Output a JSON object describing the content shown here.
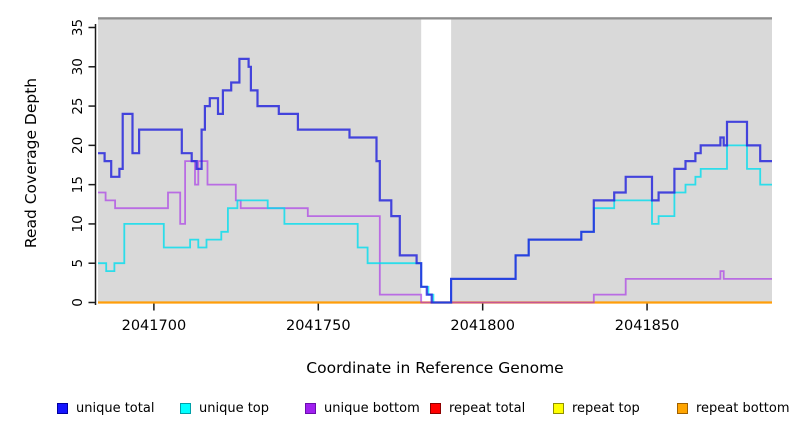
{
  "figure": {
    "background": "#FFFFFF"
  },
  "chart_data": {
    "type": "line",
    "subtype": "step-after",
    "title": "",
    "xlabel": "Coordinate in Reference Genome",
    "ylabel": "Read Coverage Depth",
    "xlim": [
      2041683,
      2041888
    ],
    "ylim": [
      0,
      36
    ],
    "xticks": [
      2041700,
      2041750,
      2041800,
      2041850
    ],
    "yticks": [
      0,
      5,
      10,
      15,
      20,
      25,
      30,
      35
    ],
    "grid": false,
    "legend_position": "bottom",
    "plot_background": "#D9D9D9",
    "gap_band": {
      "x_start": 2041781.3,
      "x_end": 2041790.4,
      "color": "#FFFFFF"
    },
    "top_border_color": "#8E8E8E",
    "axis_color": "#1A1A1A",
    "series": [
      {
        "name": "unique total",
        "legend_fill": "#1515FF",
        "legend_border": "#0000A0",
        "line_color": "#2222DD",
        "line_opacity": 0.82,
        "line_width": 2.2,
        "draw_order": 6,
        "points": [
          [
            2041683,
            19
          ],
          [
            2041685,
            18
          ],
          [
            2041687,
            16
          ],
          [
            2041689.5,
            17
          ],
          [
            2041690.5,
            24
          ],
          [
            2041693.5,
            19
          ],
          [
            2041695.5,
            22
          ],
          [
            2041708.5,
            19
          ],
          [
            2041711.5,
            18
          ],
          [
            2041713,
            17
          ],
          [
            2041714.5,
            22
          ],
          [
            2041715.5,
            25
          ],
          [
            2041717,
            26
          ],
          [
            2041719.5,
            24
          ],
          [
            2041721,
            27
          ],
          [
            2041723.5,
            28
          ],
          [
            2041726,
            31
          ],
          [
            2041728.8,
            30
          ],
          [
            2041729.5,
            27
          ],
          [
            2041731.5,
            25
          ],
          [
            2041738,
            24
          ],
          [
            2041743.8,
            22
          ],
          [
            2041759.5,
            21
          ],
          [
            2041767.7,
            18
          ],
          [
            2041768.7,
            13
          ],
          [
            2041772.2,
            11
          ],
          [
            2041774.8,
            6
          ],
          [
            2041779.9,
            5
          ],
          [
            2041781.3,
            2
          ],
          [
            2041783,
            1
          ],
          [
            2041784.5,
            0
          ],
          [
            2041790.4,
            3
          ],
          [
            2041810,
            6
          ],
          [
            2041814,
            8
          ],
          [
            2041830,
            9
          ],
          [
            2041833.8,
            13
          ],
          [
            2041840,
            14
          ],
          [
            2041843.5,
            16
          ],
          [
            2041851.5,
            13
          ],
          [
            2041853.5,
            14
          ],
          [
            2041858.3,
            17
          ],
          [
            2041861.7,
            18
          ],
          [
            2041864.7,
            19
          ],
          [
            2041866.3,
            20
          ],
          [
            2041872.3,
            21
          ],
          [
            2041873.3,
            20
          ],
          [
            2041874.3,
            23
          ],
          [
            2041880.4,
            20
          ],
          [
            2041884.4,
            18
          ]
        ]
      },
      {
        "name": "unique top",
        "legend_fill": "#00FFFF",
        "legend_border": "#00A0A8",
        "line_color": "#00DDEE",
        "line_opacity": 0.8,
        "line_width": 1.8,
        "draw_order": 5,
        "points": [
          [
            2041683,
            5
          ],
          [
            2041685.5,
            4
          ],
          [
            2041688,
            5
          ],
          [
            2041691,
            10
          ],
          [
            2041703,
            7
          ],
          [
            2041711,
            8
          ],
          [
            2041713.5,
            7
          ],
          [
            2041716,
            8
          ],
          [
            2041720.5,
            9
          ],
          [
            2041722.5,
            12
          ],
          [
            2041725.4,
            13
          ],
          [
            2041734.6,
            12
          ],
          [
            2041739.7,
            10
          ],
          [
            2041762,
            7
          ],
          [
            2041765,
            5
          ],
          [
            2041781.3,
            2
          ],
          [
            2041783.5,
            1
          ],
          [
            2041785,
            0
          ],
          [
            2041790.4,
            3
          ],
          [
            2041810,
            6
          ],
          [
            2041814,
            8
          ],
          [
            2041830,
            9
          ],
          [
            2041833.8,
            12
          ],
          [
            2041840,
            13
          ],
          [
            2041851.5,
            10
          ],
          [
            2041853.5,
            11
          ],
          [
            2041858.3,
            14
          ],
          [
            2041861.7,
            15
          ],
          [
            2041864.7,
            16
          ],
          [
            2041866.3,
            17
          ],
          [
            2041874.3,
            20
          ],
          [
            2041880.4,
            17
          ],
          [
            2041884.4,
            15
          ]
        ]
      },
      {
        "name": "unique bottom",
        "legend_fill": "#A020F0",
        "legend_border": "#6A0DAD",
        "line_color": "#A428E8",
        "line_opacity": 0.62,
        "line_width": 1.8,
        "draw_order": 4,
        "points": [
          [
            2041683,
            14
          ],
          [
            2041685.3,
            13
          ],
          [
            2041688.2,
            12
          ],
          [
            2041704.3,
            14
          ],
          [
            2041708,
            10
          ],
          [
            2041709.5,
            18
          ],
          [
            2041712.5,
            15
          ],
          [
            2041713.5,
            18
          ],
          [
            2041716.3,
            15
          ],
          [
            2041724.9,
            13
          ],
          [
            2041726.4,
            12
          ],
          [
            2041746.8,
            11
          ],
          [
            2041768.7,
            1
          ],
          [
            2041781.3,
            0
          ],
          [
            2041833.8,
            1
          ],
          [
            2041843.5,
            3
          ],
          [
            2041872.3,
            4
          ],
          [
            2041873.3,
            3
          ]
        ]
      },
      {
        "name": "repeat total",
        "legend_fill": "#FF0000",
        "legend_border": "#8B0000",
        "line_color": "#E01030",
        "line_opacity": 1,
        "line_width": 2,
        "draw_order": 1,
        "points": [
          [
            2041683,
            0
          ]
        ]
      },
      {
        "name": "repeat top",
        "legend_fill": "#FFFF00",
        "legend_border": "#909000",
        "line_color": "#FFFF00",
        "line_opacity": 1,
        "line_width": 2,
        "draw_order": 2,
        "points": [
          [
            2041683,
            0
          ]
        ]
      },
      {
        "name": "repeat bottom",
        "legend_fill": "#FFA500",
        "legend_border": "#A06000",
        "line_color": "#FF9E0A",
        "line_opacity": 1,
        "line_width": 2.2,
        "draw_order": 3,
        "points": [
          [
            2041683,
            0
          ]
        ]
      }
    ]
  }
}
